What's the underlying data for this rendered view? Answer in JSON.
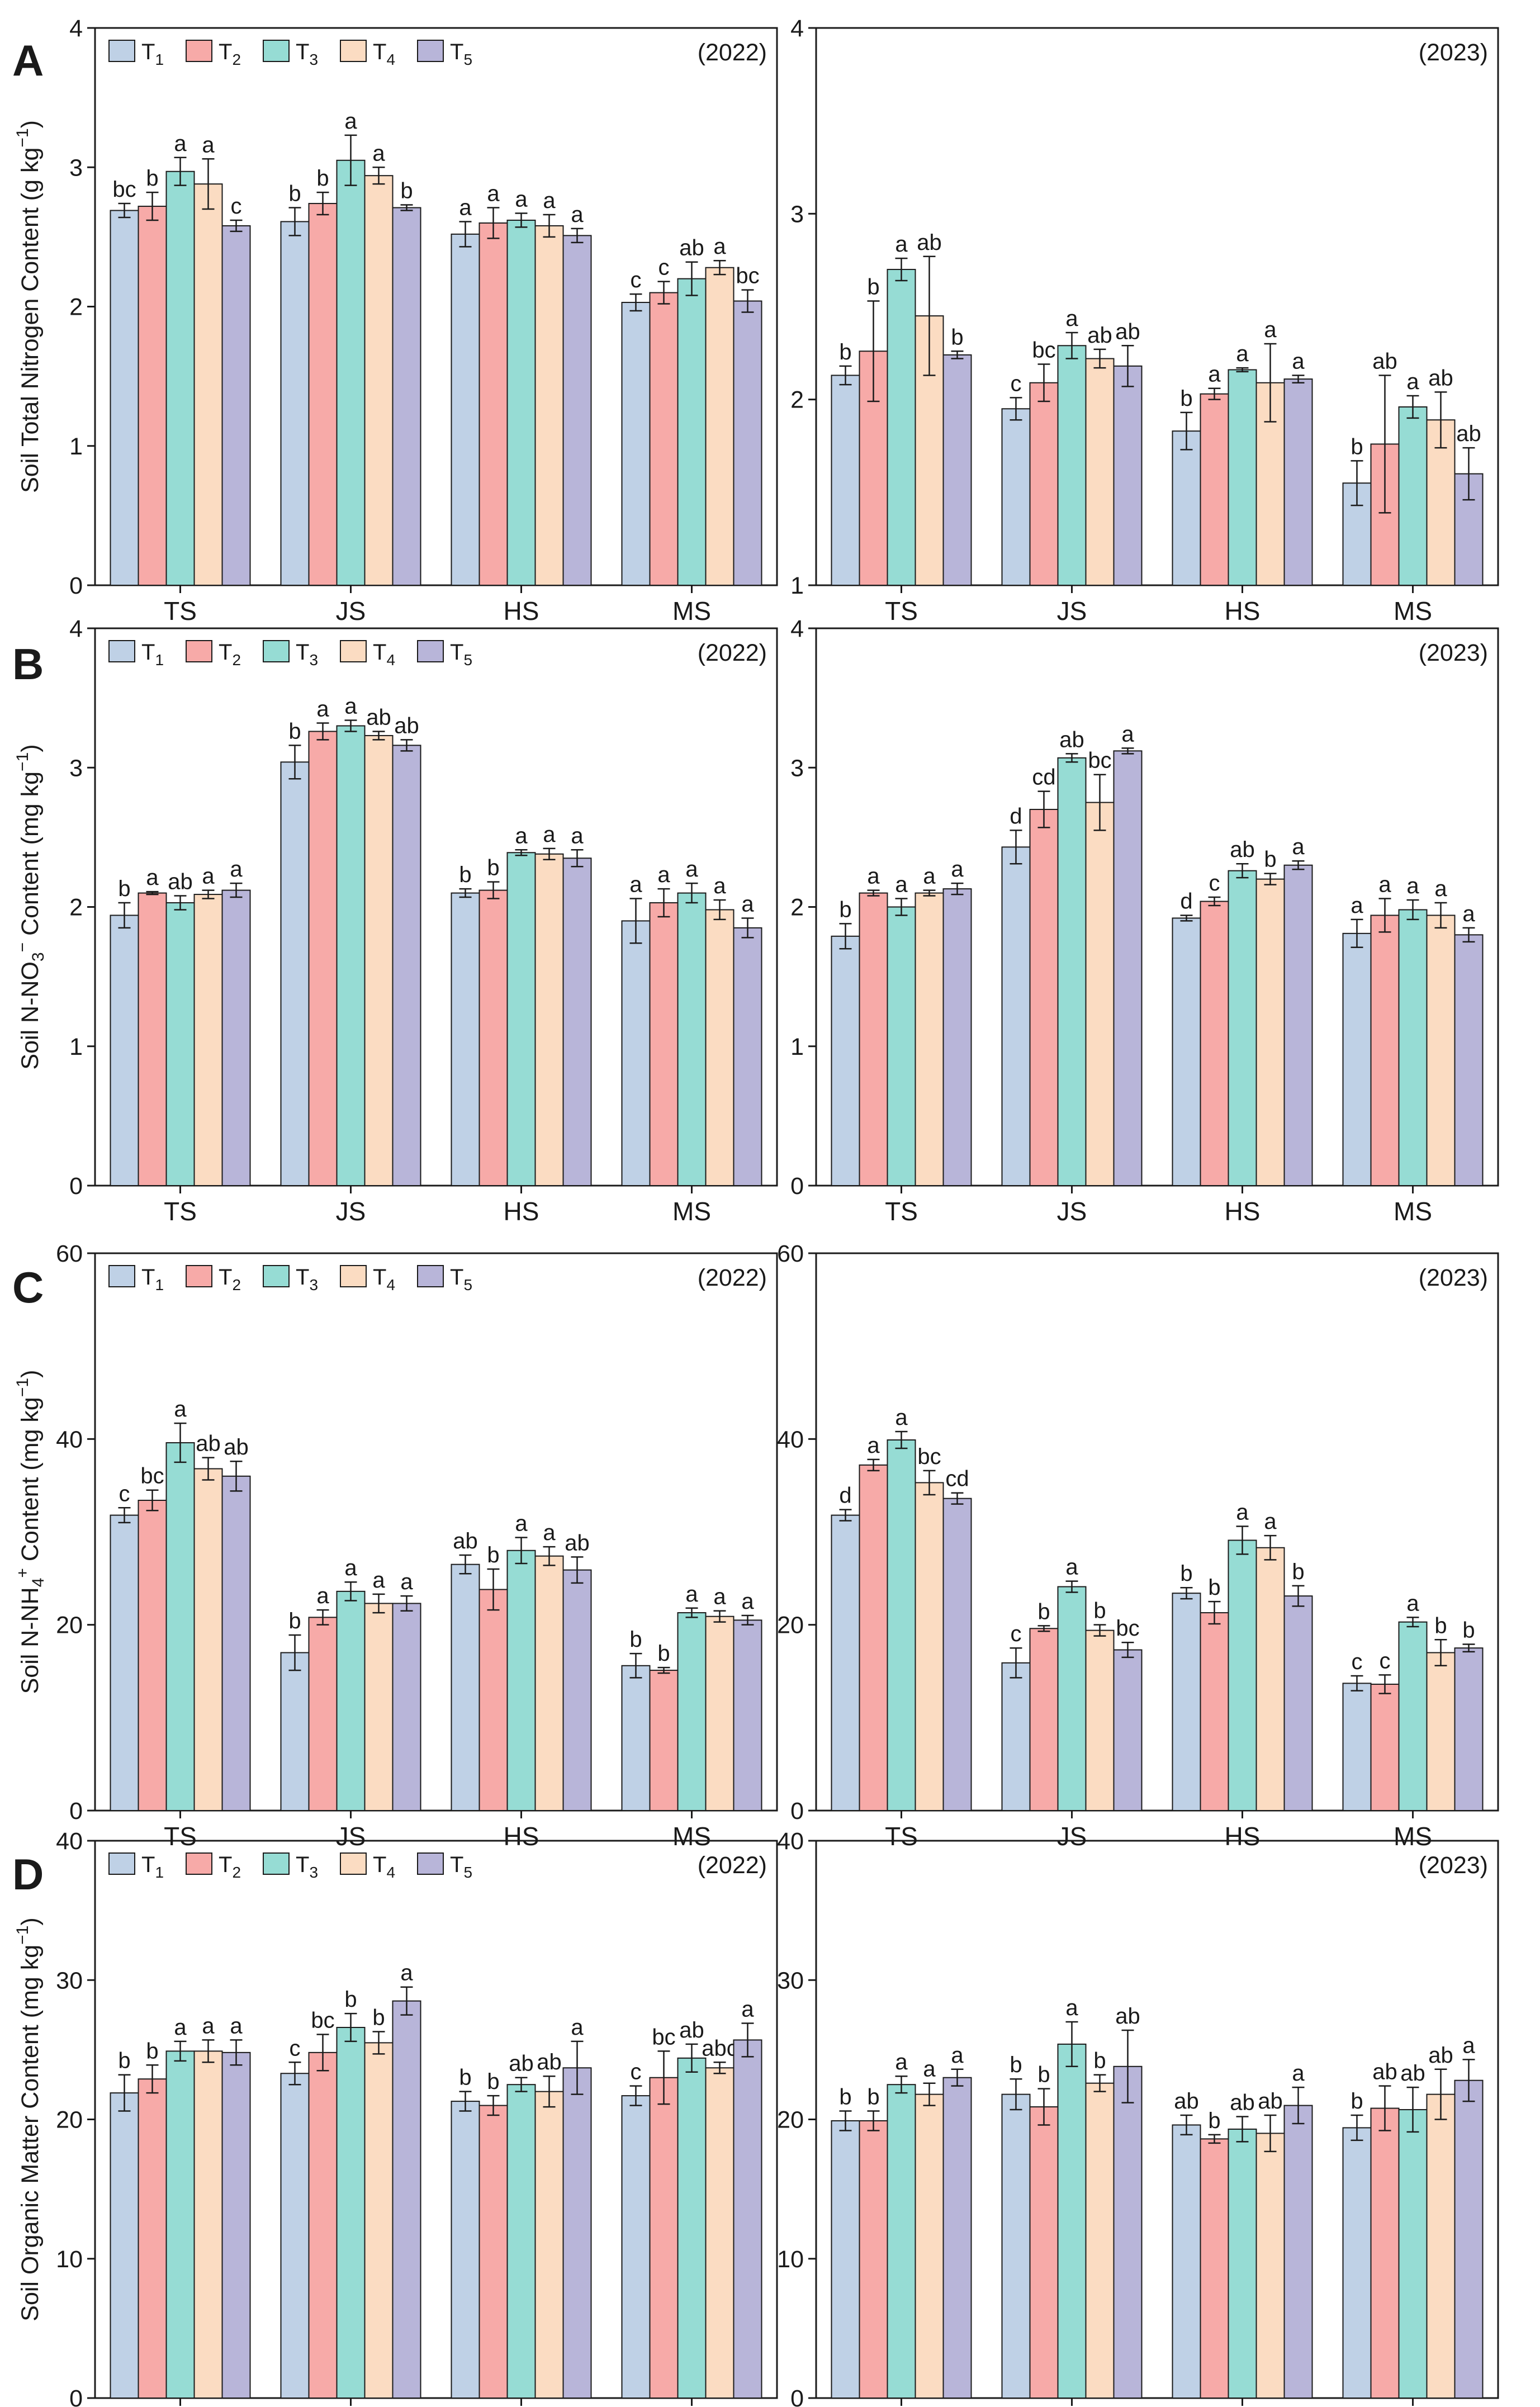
{
  "figure": {
    "categories": [
      "TS",
      "JS",
      "HS",
      "MS"
    ],
    "series_names": [
      "T1",
      "T2",
      "T3",
      "T4",
      "T5"
    ],
    "legend_labels": [
      {
        "base": "T",
        "sub": "1"
      },
      {
        "base": "T",
        "sub": "2"
      },
      {
        "base": "T",
        "sub": "3"
      },
      {
        "base": "T",
        "sub": "4"
      },
      {
        "base": "T",
        "sub": "5"
      }
    ],
    "colors": {
      "series": [
        "#bfd1e6",
        "#f7aaa8",
        "#96dcd4",
        "#fbdcc2",
        "#b8b5d9"
      ],
      "axis": "#1a1a1a",
      "text": "#1a1a1a"
    },
    "panel_letters": [
      "A",
      "B",
      "C",
      "D"
    ],
    "ylabels": {
      "A": [
        {
          "t": "Soil Total Nitrogen Content (g kg"
        },
        {
          "t": "−1",
          "sup": true
        },
        {
          "t": ")"
        }
      ],
      "B": [
        {
          "t": "Soil N-NO"
        },
        {
          "t": "3",
          "sub": true
        },
        {
          "t": "−",
          "sup": true
        },
        {
          "t": " Content (mg kg"
        },
        {
          "t": "−1",
          "sup": true
        },
        {
          "t": ")"
        }
      ],
      "C": [
        {
          "t": "Soil N-NH"
        },
        {
          "t": "4",
          "sub": true
        },
        {
          "t": "+",
          "sup": true
        },
        {
          "t": " Content (mg kg"
        },
        {
          "t": "−1",
          "sup": true
        },
        {
          "t": ")"
        }
      ],
      "D": [
        {
          "t": "Soil Organic Matter Content (mg kg"
        },
        {
          "t": "−1",
          "sup": true
        },
        {
          "t": ")"
        }
      ]
    }
  },
  "chart_data": [
    {
      "type": "bar",
      "panel": "A",
      "year_label": "(2022)",
      "legend": true,
      "categories": [
        "TS",
        "JS",
        "HS",
        "MS"
      ],
      "ylim": [
        0,
        4
      ],
      "yticks": [
        0,
        1,
        2,
        3,
        4
      ],
      "ylabel_key": "A",
      "series": [
        {
          "name": "T1",
          "values": [
            2.69,
            2.61,
            2.52,
            2.03
          ],
          "errors": [
            0.05,
            0.1,
            0.09,
            0.06
          ],
          "labels": [
            "bc",
            "b",
            "a",
            "c"
          ]
        },
        {
          "name": "T2",
          "values": [
            2.72,
            2.74,
            2.6,
            2.1
          ],
          "errors": [
            0.1,
            0.08,
            0.11,
            0.08
          ],
          "labels": [
            "b",
            "b",
            "a",
            "c"
          ]
        },
        {
          "name": "T3",
          "values": [
            2.97,
            3.05,
            2.62,
            2.2
          ],
          "errors": [
            0.1,
            0.18,
            0.05,
            0.12
          ],
          "labels": [
            "a",
            "a",
            "a",
            "ab"
          ]
        },
        {
          "name": "T4",
          "values": [
            2.88,
            2.94,
            2.58,
            2.28
          ],
          "errors": [
            0.18,
            0.06,
            0.08,
            0.05
          ],
          "labels": [
            "a",
            "a",
            "a",
            "a"
          ]
        },
        {
          "name": "T5",
          "values": [
            2.58,
            2.71,
            2.51,
            2.04
          ],
          "errors": [
            0.04,
            0.02,
            0.05,
            0.08
          ],
          "labels": [
            "c",
            "b",
            "a",
            "bc"
          ]
        }
      ]
    },
    {
      "type": "bar",
      "panel": "A",
      "year_label": "(2023)",
      "legend": false,
      "categories": [
        "TS",
        "JS",
        "HS",
        "MS"
      ],
      "ylim": [
        1,
        4
      ],
      "yticks": [
        1,
        2,
        3,
        4
      ],
      "ylabel_key": null,
      "series": [
        {
          "name": "T1",
          "values": [
            2.13,
            1.95,
            1.83,
            1.55
          ],
          "errors": [
            0.05,
            0.06,
            0.1,
            0.12
          ],
          "labels": [
            "b",
            "c",
            "b",
            "b"
          ]
        },
        {
          "name": "T2",
          "values": [
            2.26,
            2.09,
            2.03,
            1.76
          ],
          "errors": [
            0.27,
            0.1,
            0.03,
            0.37
          ],
          "labels": [
            "b",
            "bc",
            "a",
            "ab"
          ]
        },
        {
          "name": "T3",
          "values": [
            2.7,
            2.29,
            2.16,
            1.96
          ],
          "errors": [
            0.06,
            0.07,
            0.01,
            0.06
          ],
          "labels": [
            "a",
            "a",
            "a",
            "a"
          ]
        },
        {
          "name": "T4",
          "values": [
            2.45,
            2.22,
            2.09,
            1.89
          ],
          "errors": [
            0.32,
            0.05,
            0.21,
            0.15
          ],
          "labels": [
            "ab",
            "ab",
            "a",
            "ab"
          ]
        },
        {
          "name": "T5",
          "values": [
            2.24,
            2.18,
            2.11,
            1.6
          ],
          "errors": [
            0.02,
            0.11,
            0.02,
            0.14
          ],
          "labels": [
            "b",
            "ab",
            "a",
            "ab"
          ]
        }
      ]
    },
    {
      "type": "bar",
      "panel": "B",
      "year_label": "(2022)",
      "legend": true,
      "categories": [
        "TS",
        "JS",
        "HS",
        "MS"
      ],
      "ylim": [
        0,
        4
      ],
      "yticks": [
        0,
        1,
        2,
        3,
        4
      ],
      "ylabel_key": "B",
      "series": [
        {
          "name": "T1",
          "values": [
            1.94,
            3.04,
            2.1,
            1.9
          ],
          "errors": [
            0.09,
            0.12,
            0.03,
            0.16
          ],
          "labels": [
            "b",
            "b",
            "b",
            "a"
          ]
        },
        {
          "name": "T2",
          "values": [
            2.1,
            3.26,
            2.12,
            2.03
          ],
          "errors": [
            0.01,
            0.06,
            0.06,
            0.1
          ],
          "labels": [
            "a",
            "a",
            "b",
            "a"
          ]
        },
        {
          "name": "T3",
          "values": [
            2.03,
            3.3,
            2.39,
            2.1
          ],
          "errors": [
            0.05,
            0.04,
            0.02,
            0.07
          ],
          "labels": [
            "ab",
            "a",
            "a",
            "a"
          ]
        },
        {
          "name": "T4",
          "values": [
            2.09,
            3.23,
            2.38,
            1.98
          ],
          "errors": [
            0.03,
            0.03,
            0.04,
            0.07
          ],
          "labels": [
            "a",
            "ab",
            "a",
            "a"
          ]
        },
        {
          "name": "T5",
          "values": [
            2.12,
            3.16,
            2.35,
            1.85
          ],
          "errors": [
            0.05,
            0.04,
            0.06,
            0.07
          ],
          "labels": [
            "a",
            "ab",
            "a",
            "a"
          ]
        }
      ]
    },
    {
      "type": "bar",
      "panel": "B",
      "year_label": "(2023)",
      "legend": false,
      "categories": [
        "TS",
        "JS",
        "HS",
        "MS"
      ],
      "ylim": [
        0,
        4
      ],
      "yticks": [
        0,
        1,
        2,
        3,
        4
      ],
      "ylabel_key": null,
      "series": [
        {
          "name": "T1",
          "values": [
            1.79,
            2.43,
            1.92,
            1.81
          ],
          "errors": [
            0.09,
            0.12,
            0.02,
            0.1
          ],
          "labels": [
            "b",
            "d",
            "d",
            "a"
          ]
        },
        {
          "name": "T2",
          "values": [
            2.1,
            2.7,
            2.04,
            1.94
          ],
          "errors": [
            0.02,
            0.13,
            0.03,
            0.12
          ],
          "labels": [
            "a",
            "cd",
            "c",
            "a"
          ]
        },
        {
          "name": "T3",
          "values": [
            2.0,
            3.07,
            2.26,
            1.98
          ],
          "errors": [
            0.06,
            0.03,
            0.05,
            0.07
          ],
          "labels": [
            "a",
            "ab",
            "ab",
            "a"
          ]
        },
        {
          "name": "T4",
          "values": [
            2.1,
            2.75,
            2.2,
            1.94
          ],
          "errors": [
            0.02,
            0.2,
            0.04,
            0.09
          ],
          "labels": [
            "a",
            "bc",
            "b",
            "a"
          ]
        },
        {
          "name": "T5",
          "values": [
            2.13,
            3.12,
            2.3,
            1.8
          ],
          "errors": [
            0.04,
            0.02,
            0.03,
            0.05
          ],
          "labels": [
            "a",
            "a",
            "a",
            "a"
          ]
        }
      ]
    },
    {
      "type": "bar",
      "panel": "C",
      "year_label": "(2022)",
      "legend": true,
      "categories": [
        "TS",
        "JS",
        "HS",
        "MS"
      ],
      "ylim": [
        0,
        60
      ],
      "yticks": [
        0,
        20,
        40,
        60
      ],
      "ylabel_key": "C",
      "series": [
        {
          "name": "T1",
          "values": [
            31.8,
            17.0,
            26.5,
            15.6
          ],
          "errors": [
            0.8,
            1.9,
            1.0,
            1.3
          ],
          "labels": [
            "c",
            "b",
            "ab",
            "b"
          ]
        },
        {
          "name": "T2",
          "values": [
            33.4,
            20.8,
            23.8,
            15.1
          ],
          "errors": [
            1.1,
            0.8,
            2.2,
            0.3
          ],
          "labels": [
            "bc",
            "a",
            "b",
            "b"
          ]
        },
        {
          "name": "T3",
          "values": [
            39.6,
            23.6,
            28.0,
            21.3
          ],
          "errors": [
            2.1,
            1.0,
            1.4,
            0.5
          ],
          "labels": [
            "a",
            "a",
            "a",
            "a"
          ]
        },
        {
          "name": "T4",
          "values": [
            36.8,
            22.3,
            27.4,
            20.9
          ],
          "errors": [
            1.2,
            1.0,
            1.0,
            0.6
          ],
          "labels": [
            "ab",
            "a",
            "a",
            "a"
          ]
        },
        {
          "name": "T5",
          "values": [
            36.0,
            22.3,
            25.9,
            20.5
          ],
          "errors": [
            1.6,
            0.8,
            1.4,
            0.5
          ],
          "labels": [
            "ab",
            "a",
            "ab",
            "a"
          ]
        }
      ]
    },
    {
      "type": "bar",
      "panel": "C",
      "year_label": "(2023)",
      "legend": false,
      "categories": [
        "TS",
        "JS",
        "HS",
        "MS"
      ],
      "ylim": [
        0,
        60
      ],
      "yticks": [
        0,
        20,
        40,
        60
      ],
      "ylabel_key": null,
      "series": [
        {
          "name": "T1",
          "values": [
            31.8,
            15.9,
            23.4,
            13.7
          ],
          "errors": [
            0.6,
            1.6,
            0.6,
            0.8
          ],
          "labels": [
            "d",
            "c",
            "b",
            "c"
          ]
        },
        {
          "name": "T2",
          "values": [
            37.2,
            19.6,
            21.3,
            13.6
          ],
          "errors": [
            0.6,
            0.3,
            1.2,
            1.0
          ],
          "labels": [
            "a",
            "b",
            "b",
            "c"
          ]
        },
        {
          "name": "T3",
          "values": [
            39.9,
            24.1,
            29.1,
            20.3
          ],
          "errors": [
            0.9,
            0.6,
            1.5,
            0.5
          ],
          "labels": [
            "a",
            "a",
            "a",
            "a"
          ]
        },
        {
          "name": "T4",
          "values": [
            35.3,
            19.4,
            28.3,
            17.0
          ],
          "errors": [
            1.3,
            0.6,
            1.3,
            1.4
          ],
          "labels": [
            "bc",
            "b",
            "a",
            "b"
          ]
        },
        {
          "name": "T5",
          "values": [
            33.6,
            17.3,
            23.1,
            17.5
          ],
          "errors": [
            0.6,
            0.8,
            1.1,
            0.4
          ],
          "labels": [
            "cd",
            "bc",
            "b",
            "b"
          ]
        }
      ]
    },
    {
      "type": "bar",
      "panel": "D",
      "year_label": "(2022)",
      "legend": true,
      "categories": [
        "TS",
        "JS",
        "HS",
        "MS"
      ],
      "ylim": [
        0,
        40
      ],
      "yticks": [
        0,
        10,
        20,
        30,
        40
      ],
      "ylabel_key": "D",
      "series": [
        {
          "name": "T1",
          "values": [
            21.9,
            23.3,
            21.3,
            21.7
          ],
          "errors": [
            1.3,
            0.8,
            0.7,
            0.7
          ],
          "labels": [
            "b",
            "c",
            "b",
            "c"
          ]
        },
        {
          "name": "T2",
          "values": [
            22.9,
            24.8,
            21.0,
            23.0
          ],
          "errors": [
            1.0,
            1.3,
            0.7,
            1.9
          ],
          "labels": [
            "b",
            "bc",
            "b",
            "bc"
          ]
        },
        {
          "name": "T3",
          "values": [
            24.9,
            26.6,
            22.5,
            24.4
          ],
          "errors": [
            0.7,
            1.0,
            0.5,
            1.0
          ],
          "labels": [
            "a",
            "b",
            "ab",
            "ab"
          ]
        },
        {
          "name": "T4",
          "values": [
            24.9,
            25.5,
            22.0,
            23.7
          ],
          "errors": [
            0.8,
            0.8,
            1.1,
            0.4
          ],
          "labels": [
            "a",
            "b",
            "ab",
            "abc"
          ]
        },
        {
          "name": "T5",
          "values": [
            24.8,
            28.5,
            23.7,
            25.7
          ],
          "errors": [
            0.9,
            1.0,
            1.9,
            1.2
          ],
          "labels": [
            "a",
            "a",
            "a",
            "a"
          ]
        }
      ]
    },
    {
      "type": "bar",
      "panel": "D",
      "year_label": "(2023)",
      "legend": false,
      "categories": [
        "TS",
        "JS",
        "HS",
        "MS"
      ],
      "ylim": [
        0,
        40
      ],
      "yticks": [
        0,
        10,
        20,
        30,
        40
      ],
      "ylabel_key": null,
      "series": [
        {
          "name": "T1",
          "values": [
            19.9,
            21.8,
            19.6,
            19.4
          ],
          "errors": [
            0.7,
            1.1,
            0.7,
            0.9
          ],
          "labels": [
            "b",
            "b",
            "ab",
            "b"
          ]
        },
        {
          "name": "T2",
          "values": [
            19.9,
            20.9,
            18.6,
            20.8
          ],
          "errors": [
            0.7,
            1.3,
            0.3,
            1.6
          ],
          "labels": [
            "b",
            "b",
            "b",
            "ab"
          ]
        },
        {
          "name": "T3",
          "values": [
            22.5,
            25.4,
            19.3,
            20.7
          ],
          "errors": [
            0.6,
            1.6,
            0.9,
            1.6
          ],
          "labels": [
            "a",
            "a",
            "ab",
            "ab"
          ]
        },
        {
          "name": "T4",
          "values": [
            21.8,
            22.6,
            19.0,
            21.8
          ],
          "errors": [
            0.8,
            0.6,
            1.3,
            1.8
          ],
          "labels": [
            "a",
            "b",
            "ab",
            "ab"
          ]
        },
        {
          "name": "T5",
          "values": [
            23.0,
            23.8,
            21.0,
            22.8
          ],
          "errors": [
            0.6,
            2.6,
            1.3,
            1.5
          ],
          "labels": [
            "a",
            "ab",
            "a",
            "a"
          ]
        }
      ]
    }
  ]
}
